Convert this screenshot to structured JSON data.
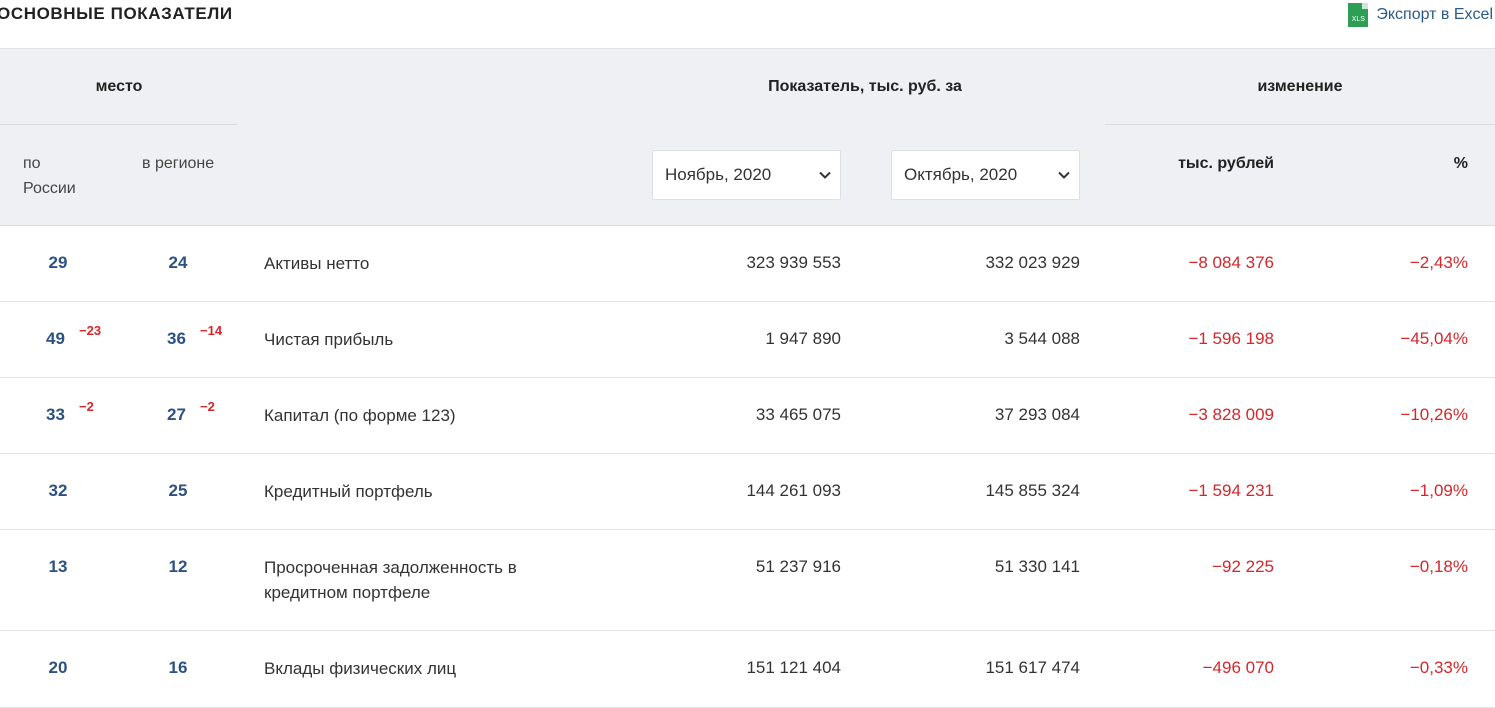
{
  "header": {
    "title": "ОСНОВНЫЕ ПОКАЗАТЕЛИ",
    "export_label": "Экспорт в Excel",
    "export_icon": "xls-file-icon",
    "export_icon_text": "XLS"
  },
  "columns": {
    "mesto": "место",
    "by_russia": "по России",
    "in_region": "в регионе",
    "indicator": "Показатель, тыс. руб. за",
    "change": "изменение",
    "change_rub": "тыс. рублей",
    "change_pct": "%",
    "period1_selected": "Ноябрь, 2020",
    "period2_selected": "Октябрь, 2020"
  },
  "rows": [
    {
      "rank_russia": "29",
      "rank_russia_delta": "",
      "rank_region": "24",
      "rank_region_delta": "",
      "name": "Активы нетто",
      "value1": "323 939 553",
      "value2": "332 023 929",
      "change_rub": "−8 084 376",
      "change_pct": "−2,43%"
    },
    {
      "rank_russia": "49",
      "rank_russia_delta": "−23",
      "rank_region": "36",
      "rank_region_delta": "−14",
      "name": "Чистая прибыль",
      "value1": "1 947 890",
      "value2": "3 544 088",
      "change_rub": "−1 596 198",
      "change_pct": "−45,04%"
    },
    {
      "rank_russia": "33",
      "rank_russia_delta": "−2",
      "rank_region": "27",
      "rank_region_delta": "−2",
      "name": "Капитал (по форме 123)",
      "value1": "33 465 075",
      "value2": "37 293 084",
      "change_rub": "−3 828 009",
      "change_pct": "−10,26%"
    },
    {
      "rank_russia": "32",
      "rank_russia_delta": "",
      "rank_region": "25",
      "rank_region_delta": "",
      "name": "Кредитный портфель",
      "value1": "144 261 093",
      "value2": "145 855 324",
      "change_rub": "−1 594 231",
      "change_pct": "−1,09%"
    },
    {
      "rank_russia": "13",
      "rank_russia_delta": "",
      "rank_region": "12",
      "rank_region_delta": "",
      "name": "Просроченная задолженность в кредитном портфеле",
      "value1": "51 237 916",
      "value2": "51 330 141",
      "change_rub": "−92 225",
      "change_pct": "−0,18%"
    },
    {
      "rank_russia": "20",
      "rank_russia_delta": "",
      "rank_region": "16",
      "rank_region_delta": "",
      "name": "Вклады физических лиц",
      "value1": "151 121 404",
      "value2": "151 617 474",
      "change_rub": "−496 070",
      "change_pct": "−0,33%"
    }
  ],
  "colors": {
    "rank": "#2c5282",
    "negative": "#d3272b",
    "header_bg": "#eff0f3",
    "link": "#2a5a8a",
    "excel_green": "#2e9e57"
  }
}
